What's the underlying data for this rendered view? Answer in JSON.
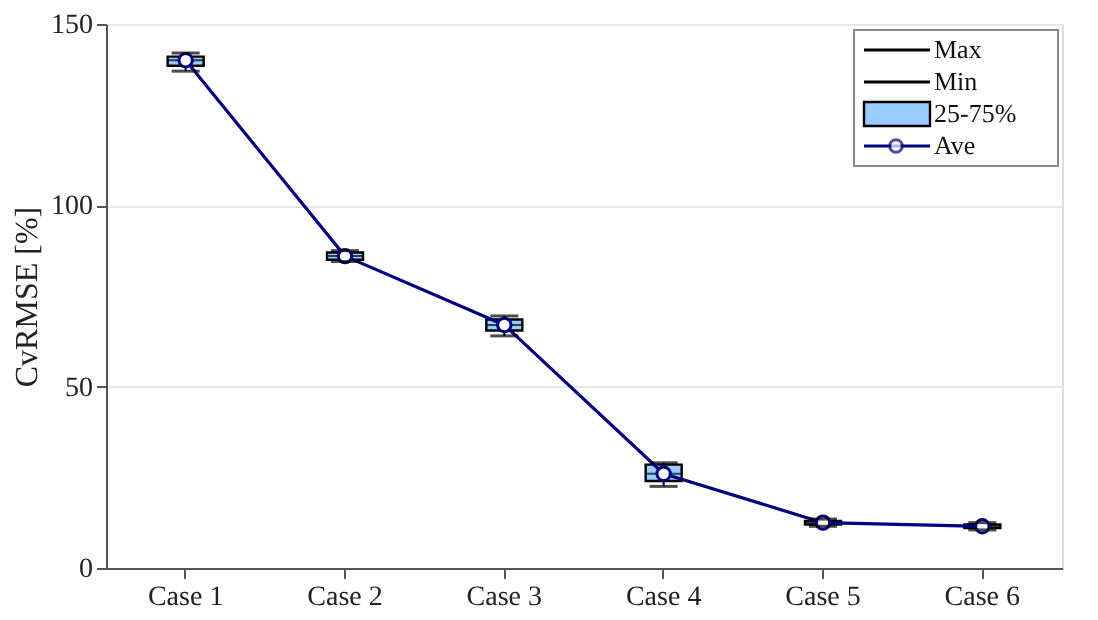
{
  "chart_data": {
    "type": "box",
    "ylabel": "CvRMSE [%]",
    "categories": [
      "Case 1",
      "Case 2",
      "Case 3",
      "Case 4",
      "Case 5",
      "Case 6"
    ],
    "annotations": [
      "Max",
      "Min"
    ],
    "ylim": [
      0,
      150
    ],
    "yticks": [
      0,
      50,
      100,
      150
    ],
    "grid": "y",
    "legend": "top right",
    "series": [
      {
        "name": "25-75%",
        "color": "#99ccff",
        "boxes": [
          {
            "low": 137,
            "q1": 138.5,
            "median": 140,
            "q3": 141,
            "high": 142
          },
          {
            "low": 84.5,
            "q1": 85,
            "median": 86,
            "q3": 87,
            "high": 87.5
          },
          {
            "low": 64,
            "q1": 65.5,
            "median": 67,
            "q3": 68.5,
            "high": 69.5
          },
          {
            "low": 22.5,
            "q1": 24,
            "median": 26,
            "q3": 28.5,
            "high": 29
          },
          {
            "low": 11.5,
            "q1": 12,
            "median": 12.5,
            "q3": 13,
            "high": 13.5
          },
          {
            "low": 10.5,
            "q1": 11,
            "median": 11.5,
            "q3": 12,
            "high": 12.5
          }
        ]
      },
      {
        "name": "Ave",
        "type": "line",
        "color": "#000080",
        "marker": "circle",
        "values": [
          140,
          86,
          67,
          26,
          12.5,
          11.5
        ]
      }
    ]
  }
}
